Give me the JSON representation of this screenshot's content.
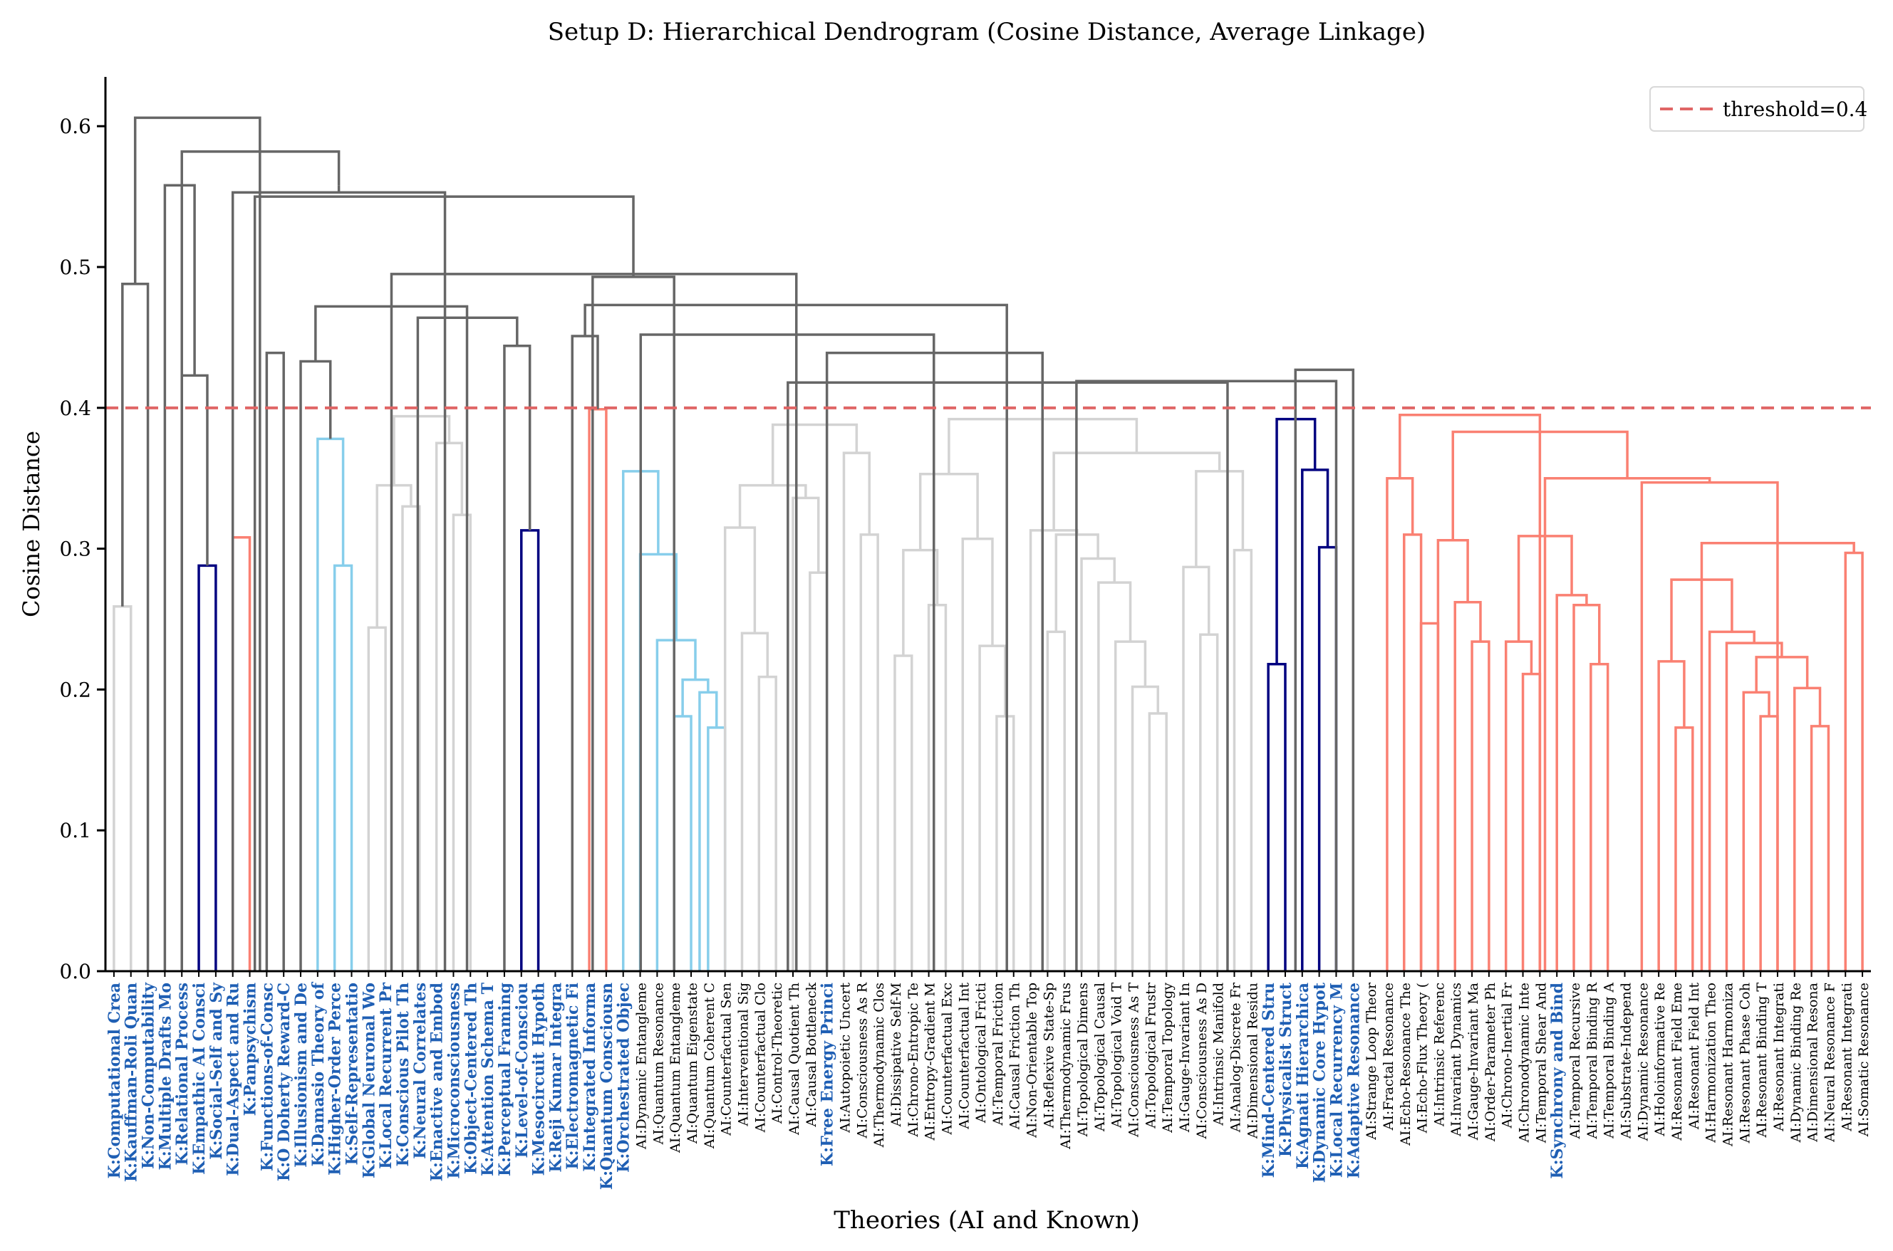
{
  "chart_data": {
    "type": "dendrogram",
    "title": "Setup D: Hierarchical Dendrogram (Cosine Distance, Average Linkage)",
    "xlabel": "Theories (AI and Known)",
    "ylabel": "Cosine Distance",
    "ylim": [
      0,
      0.635
    ],
    "yticks": [
      "0.0",
      "0.1",
      "0.2",
      "0.3",
      "0.4",
      "0.5",
      "0.6"
    ],
    "threshold": 0.4,
    "legend": {
      "position": "top-right",
      "label": "threshold=0.4",
      "color": "#e06666"
    },
    "colors": {
      "C1": "#d3d3d3",
      "C2": "#000080",
      "C3": "#fa8072",
      "C4": "#87ceeb",
      "above": "#666666",
      "threshold": "#e06666",
      "known_label": "#1f5fb4",
      "ai_label": "#000000"
    },
    "leaves": [
      {
        "label": "K:Computational Crea",
        "known": true
      },
      {
        "label": "K:Kauffman-Roli Quan",
        "known": true
      },
      {
        "label": "K:Non-Computability",
        "known": true
      },
      {
        "label": "K:Multiple Drafts Mo",
        "known": true
      },
      {
        "label": "K:Relational Process",
        "known": true
      },
      {
        "label": "K:Empathic AI Consci",
        "known": true
      },
      {
        "label": "K:Social-Self and Sy",
        "known": true
      },
      {
        "label": "K:Dual-Aspect and Ru",
        "known": true
      },
      {
        "label": "K:Panpsychism",
        "known": true
      },
      {
        "label": "K:Functions-of-Consc",
        "known": true
      },
      {
        "label": "K:O Doherty Reward-C",
        "known": true
      },
      {
        "label": "K:Illusionism and De",
        "known": true
      },
      {
        "label": "K:Damasio Theory of",
        "known": true
      },
      {
        "label": "K:Higher-Order Perce",
        "known": true
      },
      {
        "label": "K:Self-Representatio",
        "known": true
      },
      {
        "label": "K:Global Neuronal Wo",
        "known": true
      },
      {
        "label": "K:Local Recurrent Pr",
        "known": true
      },
      {
        "label": "K:Conscious Pilot Th",
        "known": true
      },
      {
        "label": "K:Neural Correlates",
        "known": true
      },
      {
        "label": "K:Enactive and Embod",
        "known": true
      },
      {
        "label": "K:Microconsciousness",
        "known": true
      },
      {
        "label": "K:Object-Centered Th",
        "known": true
      },
      {
        "label": "K:Attention Schema T",
        "known": true
      },
      {
        "label": "K:Perceptual Framing",
        "known": true
      },
      {
        "label": "K:Level-of-Consciou",
        "known": true
      },
      {
        "label": "K:Mesocircuit Hypoth",
        "known": true
      },
      {
        "label": "K:Reji Kumar Integra",
        "known": true
      },
      {
        "label": "K:Electromagnetic Fi",
        "known": true
      },
      {
        "label": "K:Integrated Informa",
        "known": true
      },
      {
        "label": "K:Quantum Consciousn",
        "known": true
      },
      {
        "label": "K:Orchestrated Objec",
        "known": true
      },
      {
        "label": "AI:Dynamic Entangleme",
        "known": false
      },
      {
        "label": "AI:Quantum Resonance",
        "known": false
      },
      {
        "label": "AI:Quantum Entangleme",
        "known": false
      },
      {
        "label": "AI:Quantum Eigenstate",
        "known": false
      },
      {
        "label": "AI:Quantum Coherent C",
        "known": false
      },
      {
        "label": "AI:Counterfactual Sen",
        "known": false
      },
      {
        "label": "AI:Interventional Sig",
        "known": false
      },
      {
        "label": "AI:Counterfactual Clo",
        "known": false
      },
      {
        "label": "AI:Control-Theoretic",
        "known": false
      },
      {
        "label": "AI:Causal Quotient Th",
        "known": false
      },
      {
        "label": "AI:Causal Bottleneck",
        "known": false
      },
      {
        "label": "K:Free Energy Princi",
        "known": true
      },
      {
        "label": "AI:Autopoietic Uncert",
        "known": false
      },
      {
        "label": "AI:Consciousness As R",
        "known": false
      },
      {
        "label": "AI:Thermodynamic Clos",
        "known": false
      },
      {
        "label": "AI:Dissipative Self-M",
        "known": false
      },
      {
        "label": "AI:Chrono-Entropic Te",
        "known": false
      },
      {
        "label": "AI:Entropy-Gradient M",
        "known": false
      },
      {
        "label": "AI:Counterfactual Exc",
        "known": false
      },
      {
        "label": "AI:Counterfactual Int",
        "known": false
      },
      {
        "label": "AI:Ontological Fricti",
        "known": false
      },
      {
        "label": "AI:Temporal Friction",
        "known": false
      },
      {
        "label": "AI:Causal Friction Th",
        "known": false
      },
      {
        "label": "AI:Non-Orientable Top",
        "known": false
      },
      {
        "label": "AI:Reflexive State-Sp",
        "known": false
      },
      {
        "label": "AI:Thermodynamic Frus",
        "known": false
      },
      {
        "label": "AI:Topological Dimens",
        "known": false
      },
      {
        "label": "AI:Topological Causal",
        "known": false
      },
      {
        "label": "AI:Topological Void T",
        "known": false
      },
      {
        "label": "AI:Consciousness As T",
        "known": false
      },
      {
        "label": "AI:Topological Frustr",
        "known": false
      },
      {
        "label": "AI:Temporal Topology",
        "known": false
      },
      {
        "label": "AI:Gauge-Invariant In",
        "known": false
      },
      {
        "label": "AI:Consciousness As D",
        "known": false
      },
      {
        "label": "AI:Intrinsic Manifold",
        "known": false
      },
      {
        "label": "AI:Analog-Discrete Fr",
        "known": false
      },
      {
        "label": "AI:Dimensional Residu",
        "known": false
      },
      {
        "label": "K:Mind-Centered Stru",
        "known": true
      },
      {
        "label": "K:Physicalist Struct",
        "known": true
      },
      {
        "label": "K:Agnati Hierarchica",
        "known": true
      },
      {
        "label": "K:Dynamic Core Hypot",
        "known": true
      },
      {
        "label": "K:Local Recurrency M",
        "known": true
      },
      {
        "label": "K:Adaptive Resonance",
        "known": true
      },
      {
        "label": "AI:Strange Loop Theor",
        "known": false
      },
      {
        "label": "AI:Fractal Resonance",
        "known": false
      },
      {
        "label": "AI:Echo-Resonance The",
        "known": false
      },
      {
        "label": "AI:Echo-Flux Theory (",
        "known": false
      },
      {
        "label": "AI:Intrinsic Referenc",
        "known": false
      },
      {
        "label": "AI:Invariant Dynamics",
        "known": false
      },
      {
        "label": "AI:Gauge-Invariant Ma",
        "known": false
      },
      {
        "label": "AI:Order-Parameter Ph",
        "known": false
      },
      {
        "label": "AI:Chrono-Inertial Fr",
        "known": false
      },
      {
        "label": "AI:Chronodynamic Inte",
        "known": false
      },
      {
        "label": "AI:Temporal Shear And",
        "known": false
      },
      {
        "label": "K:Synchrony and Bind",
        "known": true
      },
      {
        "label": "AI:Temporal Recursive",
        "known": false
      },
      {
        "label": "AI:Temporal Binding R",
        "known": false
      },
      {
        "label": "AI:Temporal Binding A",
        "known": false
      },
      {
        "label": "AI:Substrate-Independ",
        "known": false
      },
      {
        "label": "AI:Dynamic Resonance",
        "known": false
      },
      {
        "label": "AI:Holoinformative Re",
        "known": false
      },
      {
        "label": "AI:Resonant Field Eme",
        "known": false
      },
      {
        "label": "AI:Resonant Field Int",
        "known": false
      },
      {
        "label": "AI:Harmonization Theo",
        "known": false
      },
      {
        "label": "AI:Resonant Harmoniza",
        "known": false
      },
      {
        "label": "AI:Resonant Phase Coh",
        "known": false
      },
      {
        "label": "AI:Resonant Binding T",
        "known": false
      },
      {
        "label": "AI:Resonant Integrati",
        "known": false
      },
      {
        "label": "AI:Dynamic Binding Re",
        "known": false
      },
      {
        "label": "AI:Dimensional Resona",
        "known": false
      },
      {
        "label": "AI:Neural Resonance F",
        "known": false
      },
      {
        "label": "AI:Resonant Integrati",
        "known": false
      },
      {
        "label": "AI:Somatic Resonance",
        "known": false
      }
    ],
    "links": [
      [
        "C1",
        1,
        2,
        0.259
      ],
      [
        "C2",
        6,
        7,
        0.288
      ],
      [
        "C3",
        8,
        9,
        0.308
      ],
      [
        "C4",
        14,
        15,
        0.288
      ],
      [
        "C4",
        13,
        14.5,
        0.378
      ],
      [
        "C1",
        16,
        17,
        0.244
      ],
      [
        "C1",
        18,
        19,
        0.33
      ],
      [
        "C1",
        16.5,
        18.5,
        0.345
      ],
      [
        "C1",
        21,
        22,
        0.324
      ],
      [
        "C1",
        20,
        21.5,
        0.375
      ],
      [
        "C1",
        17.5,
        20.75,
        0.394
      ],
      [
        "C2",
        25,
        26,
        0.313
      ],
      [
        "C3",
        29,
        30,
        0.399
      ],
      [
        "C4",
        34,
        35,
        0.181
      ],
      [
        "C4",
        36,
        37,
        0.173
      ],
      [
        "C4",
        35.5,
        36.5,
        0.198
      ],
      [
        "C4",
        34.5,
        36,
        0.207
      ],
      [
        "C4",
        33,
        35.25,
        0.235
      ],
      [
        "C4",
        32,
        34.125,
        0.296
      ],
      [
        "C4",
        31,
        33.0625,
        0.355
      ],
      [
        "C1",
        39,
        40,
        0.209
      ],
      [
        "C1",
        38,
        39.5,
        0.24
      ],
      [
        "C1",
        37,
        38.75,
        0.315
      ],
      [
        "C1",
        42,
        43,
        0.283
      ],
      [
        "C1",
        41,
        42.5,
        0.336
      ],
      [
        "C1",
        37.875,
        41.75,
        0.345
      ],
      [
        "C1",
        45,
        46,
        0.31
      ],
      [
        "C1",
        44,
        45.5,
        0.368
      ],
      [
        "C1",
        39.8125,
        44.75,
        0.388
      ],
      [
        "C1",
        47,
        48,
        0.224
      ],
      [
        "C1",
        49,
        50,
        0.26
      ],
      [
        "C1",
        47.5,
        49.5,
        0.299
      ],
      [
        "C1",
        53,
        54,
        0.181
      ],
      [
        "C1",
        52,
        53.5,
        0.231
      ],
      [
        "C1",
        51,
        52.75,
        0.307
      ],
      [
        "C1",
        48.5,
        51.875,
        0.353
      ],
      [
        "C1",
        56,
        57,
        0.241
      ],
      [
        "C1",
        62,
        63,
        0.183
      ],
      [
        "C1",
        61,
        62.5,
        0.202
      ],
      [
        "C1",
        60,
        61.75,
        0.234
      ],
      [
        "C1",
        59,
        60.875,
        0.276
      ],
      [
        "C1",
        58,
        59.9375,
        0.293
      ],
      [
        "C1",
        56.5,
        58.96875,
        0.31
      ],
      [
        "C1",
        55,
        57.734375,
        0.313
      ],
      [
        "C1",
        65,
        66,
        0.239
      ],
      [
        "C1",
        64,
        65.5,
        0.287
      ],
      [
        "C1",
        67,
        68,
        0.299
      ],
      [
        "C1",
        64.75,
        67.5,
        0.355
      ],
      [
        "C1",
        56.3671875,
        66.125,
        0.368
      ],
      [
        "C1",
        50.1875,
        61.24609375,
        0.392
      ],
      [
        "C2",
        69,
        70,
        0.218
      ],
      [
        "C2",
        72,
        73,
        0.301
      ],
      [
        "C2",
        71,
        72.5,
        0.356
      ],
      [
        "C2",
        69.5,
        71.75,
        0.392
      ],
      [
        "C3",
        77,
        78,
        0.31
      ],
      [
        "C3",
        78,
        79,
        0.247
      ],
      [
        "C3",
        76,
        77.5,
        0.35
      ],
      [
        "C3",
        81,
        82,
        0.234
      ],
      [
        "C3",
        80,
        81.5,
        0.262
      ],
      [
        "C3",
        79,
        80.75,
        0.306
      ],
      [
        "C3",
        84,
        85,
        0.211
      ],
      [
        "C3",
        83,
        84.5,
        0.234
      ],
      [
        "C3",
        88,
        89,
        0.218
      ],
      [
        "C3",
        87,
        88.5,
        0.26
      ],
      [
        "C3",
        86,
        87.75,
        0.267
      ],
      [
        "C3",
        83.75,
        86.875,
        0.309
      ],
      [
        "C3",
        93,
        94,
        0.173
      ],
      [
        "C3",
        92,
        93.5,
        0.22
      ],
      [
        "C3",
        98,
        99,
        0.181
      ],
      [
        "C3",
        97,
        98.5,
        0.198
      ],
      [
        "C3",
        101,
        102,
        0.174
      ],
      [
        "C3",
        100,
        101.5,
        0.201
      ],
      [
        "C3",
        97.75,
        100.75,
        0.223
      ],
      [
        "C3",
        96,
        99.25,
        0.233
      ],
      [
        "C3",
        95,
        97.625,
        0.241
      ],
      [
        "C3",
        92.75,
        96.3125,
        0.278
      ],
      [
        "C3",
        103,
        104,
        0.297
      ],
      [
        "C3",
        94.53,
        103.5,
        0.304
      ],
      [
        "C3",
        91,
        99.0,
        0.347
      ],
      [
        "C3",
        85.3,
        95.0,
        0.35
      ],
      [
        "C3",
        79.875,
        90.15,
        0.383
      ],
      [
        "C3",
        76.75,
        85.0,
        0.395
      ],
      [
        "above",
        1.5,
        3,
        0.488
      ],
      [
        "above",
        5,
        6.5,
        0.423
      ],
      [
        "above",
        24,
        25.5,
        0.444
      ],
      [
        "above",
        28,
        29.5,
        0.451
      ],
      [
        "above",
        12,
        13.75,
        0.433
      ],
      [
        "above",
        10,
        11,
        0.439
      ],
      [
        "above",
        18.9,
        24.75,
        0.464
      ],
      [
        "above",
        12.875,
        21.8,
        0.472
      ],
      [
        "above",
        43.0,
        55.7,
        0.439
      ],
      [
        "above",
        70.6,
        74,
        0.427
      ],
      [
        "above",
        32.03,
        49.3,
        0.452
      ],
      [
        "above",
        57.7,
        73.0,
        0.419
      ],
      [
        "above",
        40.7,
        66.6,
        0.418
      ],
      [
        "above",
        28.75,
        53.6,
        0.473
      ],
      [
        "above",
        17.35,
        41.2,
        0.495
      ],
      [
        "above",
        29.2,
        34.0,
        0.493
      ],
      [
        "above",
        9.3,
        31.6,
        0.55
      ],
      [
        "above",
        8,
        20.5,
        0.553
      ],
      [
        "above",
        4,
        5.75,
        0.558
      ],
      [
        "above",
        14.25,
        14.25,
        0.558
      ],
      [
        "above",
        5,
        14.25,
        0.582
      ],
      [
        "above",
        2.25,
        9.6,
        0.606
      ]
    ]
  }
}
